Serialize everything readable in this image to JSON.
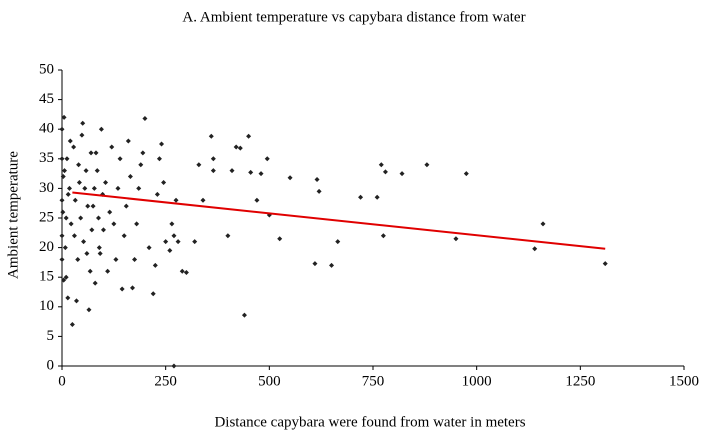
{
  "chart_data": {
    "type": "scatter",
    "title": "A. Ambient temperature vs capybara distance from water",
    "xlabel": "Distance capybara were found from water in meters",
    "ylabel": "Ambient temperature",
    "xlim": [
      0,
      1500
    ],
    "xticks": [
      0,
      250,
      500,
      750,
      1000,
      1250,
      1500
    ],
    "ylim": [
      0,
      50
    ],
    "yticks": [
      0,
      5,
      10,
      15,
      20,
      25,
      30,
      35,
      40,
      45,
      50
    ],
    "series": [
      {
        "color": "#222222",
        "x": [
          270,
          440,
          1310,
          1160,
          1140,
          975,
          950,
          880,
          820,
          780,
          770,
          775,
          760,
          720,
          665,
          650,
          610,
          615,
          620,
          550,
          525,
          500,
          495,
          480,
          470,
          455,
          450,
          430,
          420,
          410,
          400,
          360,
          365,
          365,
          340,
          330,
          320,
          300,
          290,
          280,
          275,
          270,
          265,
          260,
          250,
          245,
          240,
          235,
          230,
          225,
          220,
          210,
          200,
          195,
          190,
          185,
          180,
          175,
          170,
          165,
          160,
          155,
          150,
          145,
          140,
          135,
          130,
          125,
          120,
          115,
          110,
          105,
          100,
          95,
          90,
          85,
          80,
          75,
          70,
          65,
          60,
          55,
          50,
          45,
          40,
          35,
          30,
          25,
          20,
          15,
          10,
          5,
          3,
          2,
          8,
          12,
          18,
          22,
          28,
          32,
          38,
          42,
          48,
          52,
          58,
          62,
          68,
          72,
          78,
          82,
          88,
          92,
          98,
          0,
          0,
          0,
          0,
          0,
          4,
          14,
          6,
          10
        ],
        "values": [
          0,
          8.6,
          17.3,
          24,
          19.8,
          32.5,
          21.5,
          34,
          32.5,
          32.8,
          34,
          22,
          28.5,
          28.5,
          21,
          17,
          17.3,
          31.5,
          29.5,
          31.8,
          21.5,
          25.5,
          35,
          32.5,
          28,
          32.7,
          38.8,
          36.8,
          37,
          33,
          22,
          38.8,
          33,
          35,
          28,
          34,
          21,
          15.8,
          16,
          21,
          28,
          22,
          24,
          19.5,
          21,
          31,
          37.5,
          35,
          29,
          17,
          12.2,
          20,
          41.8,
          36,
          34,
          30,
          24,
          18,
          13.2,
          32,
          38,
          27,
          22,
          13,
          35,
          30,
          18,
          24,
          37,
          26,
          16,
          31,
          23,
          40,
          20,
          33,
          14,
          27,
          36,
          9.5,
          19,
          30,
          41,
          25,
          34,
          11,
          22,
          7,
          38,
          29,
          15,
          42,
          32,
          26,
          20,
          35,
          30,
          24,
          37,
          28,
          18,
          31,
          39,
          21,
          33,
          27,
          16,
          23,
          30,
          36,
          25,
          19,
          29,
          35,
          28,
          22,
          18,
          40,
          14.5,
          11.5,
          33,
          25
        ]
      }
    ],
    "trendline": {
      "color": "#e00000",
      "x": [
        25,
        1310
      ],
      "values": [
        29.3,
        19.8
      ]
    }
  }
}
